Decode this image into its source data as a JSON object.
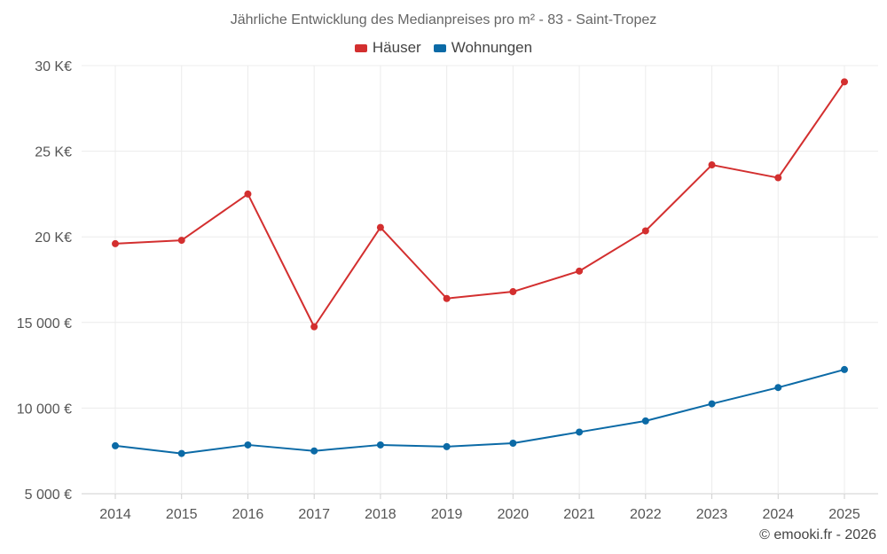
{
  "chart_data": {
    "type": "line",
    "title": "Jährliche Entwicklung des Medianpreises pro m² - 83 - Saint-Tropez",
    "categories": [
      "2014",
      "2015",
      "2016",
      "2017",
      "2018",
      "2019",
      "2020",
      "2021",
      "2022",
      "2023",
      "2024",
      "2025"
    ],
    "series": [
      {
        "name": "Häuser",
        "color": "#d32f2f",
        "values": [
          19600,
          19800,
          22500,
          14750,
          20550,
          16400,
          16800,
          18000,
          20350,
          24200,
          23450,
          29050
        ]
      },
      {
        "name": "Wohnungen",
        "color": "#0b6aa6",
        "values": [
          7800,
          7350,
          7850,
          7500,
          7850,
          7750,
          7950,
          8600,
          9250,
          10250,
          11200,
          12250
        ]
      }
    ],
    "ylim": [
      5000,
      30000
    ],
    "yticks": [
      5000,
      10000,
      15000,
      20000,
      25000,
      30000
    ],
    "ytick_labels": [
      "5 000 €",
      "10 000 €",
      "15 000 €",
      "20 K€",
      "25 K€",
      "30 K€"
    ],
    "xlabel": "",
    "ylabel": "",
    "legend_position": "top-center",
    "grid": true
  },
  "credit": "© emooki.fr - 2026"
}
